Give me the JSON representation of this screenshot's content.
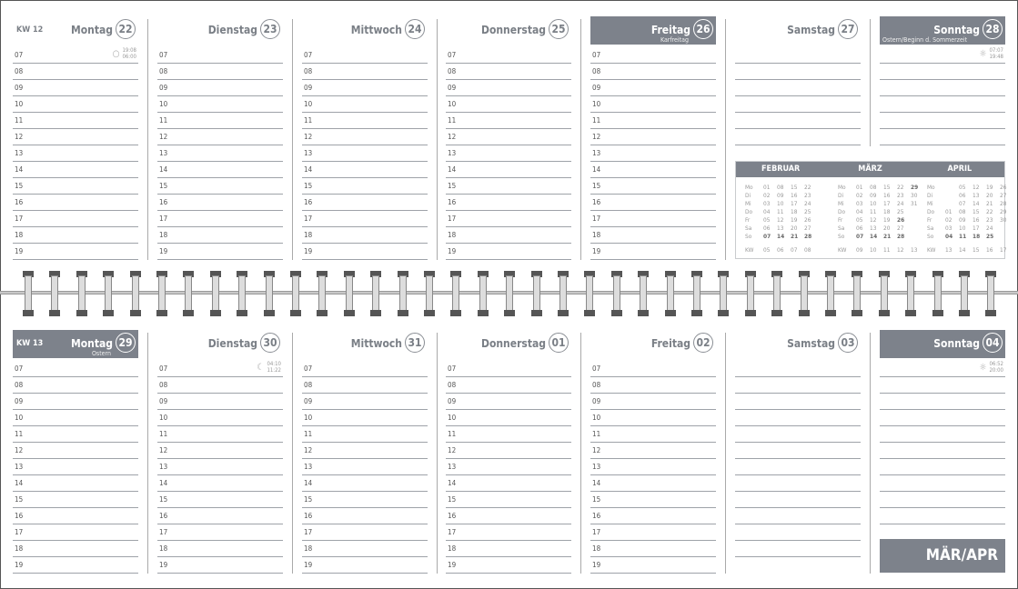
{
  "hours": [
    "07",
    "08",
    "09",
    "10",
    "11",
    "12",
    "13",
    "14",
    "15",
    "16",
    "17",
    "18",
    "19"
  ],
  "weeks": [
    {
      "kw": "KW 12",
      "days": [
        {
          "name": "Montag",
          "num": "22",
          "dark": false,
          "info": {
            "icon": "full-moon-icon",
            "glyph": "○",
            "t1": "19:08",
            "t2": "06:00"
          }
        },
        {
          "name": "Dienstag",
          "num": "23",
          "dark": false
        },
        {
          "name": "Mittwoch",
          "num": "24",
          "dark": false
        },
        {
          "name": "Donnerstag",
          "num": "25",
          "dark": false
        },
        {
          "name": "Freitag",
          "num": "26",
          "dark": true,
          "sub": "Karfreitag"
        },
        {
          "name": "Samstag",
          "num": "27",
          "dark": false
        },
        {
          "name": "Sonntag",
          "num": "28",
          "dark": true,
          "sub": "Ostern/Beginn d. Sommerzeit",
          "info": {
            "icon": "sun-icon",
            "glyph": "☼",
            "t1": "07:07",
            "t2": "19:48"
          }
        }
      ]
    },
    {
      "kw": "KW 13",
      "days": [
        {
          "name": "Montag",
          "num": "29",
          "dark": true,
          "sub": "Ostern"
        },
        {
          "name": "Dienstag",
          "num": "30",
          "dark": false,
          "info": {
            "icon": "moon-crescent-icon",
            "glyph": "☾",
            "t1": "04:10",
            "t2": "11:22"
          }
        },
        {
          "name": "Mittwoch",
          "num": "31",
          "dark": false
        },
        {
          "name": "Donnerstag",
          "num": "01",
          "dark": false
        },
        {
          "name": "Freitag",
          "num": "02",
          "dark": false
        },
        {
          "name": "Samstag",
          "num": "03",
          "dark": false
        },
        {
          "name": "Sonntag",
          "num": "04",
          "dark": true,
          "info": {
            "icon": "sun-icon",
            "glyph": "☼",
            "t1": "06:52",
            "t2": "20:00"
          }
        }
      ]
    }
  ],
  "mini_calendar": {
    "weekdays": [
      "Mo",
      "Di",
      "Mi",
      "Do",
      "Fr",
      "Sa",
      "So"
    ],
    "months": [
      {
        "name": "FEBRUAR",
        "cols": [
          [
            "01",
            "02",
            "03",
            "04",
            "05",
            "06",
            "07"
          ],
          [
            "08",
            "09",
            "10",
            "11",
            "12",
            "13",
            "14"
          ],
          [
            "15",
            "16",
            "17",
            "18",
            "19",
            "20",
            "21"
          ],
          [
            "22",
            "23",
            "24",
            "25",
            "26",
            "27",
            "28"
          ]
        ],
        "kw": [
          "05",
          "06",
          "07",
          "08"
        ]
      },
      {
        "name": "MÄRZ",
        "cols": [
          [
            "01",
            "02",
            "03",
            "04",
            "05",
            "06",
            "07"
          ],
          [
            "08",
            "09",
            "10",
            "11",
            "12",
            "13",
            "14"
          ],
          [
            "15",
            "16",
            "17",
            "18",
            "19",
            "20",
            "21"
          ],
          [
            "22",
            "23",
            "24",
            "25",
            "26",
            "27",
            "28"
          ],
          [
            "29",
            "30",
            "31",
            "",
            "",
            "",
            ""
          ]
        ],
        "kw": [
          "09",
          "10",
          "11",
          "12",
          "13"
        ]
      },
      {
        "name": "APRIL",
        "cols": [
          [
            "",
            "",
            "",
            "01",
            "02",
            "03",
            "04"
          ],
          [
            "05",
            "06",
            "07",
            "08",
            "09",
            "10",
            "11"
          ],
          [
            "12",
            "13",
            "14",
            "15",
            "16",
            "17",
            "18"
          ],
          [
            "19",
            "20",
            "21",
            "22",
            "23",
            "24",
            "25"
          ],
          [
            "26",
            "27",
            "28",
            "29",
            "30",
            "",
            ""
          ]
        ],
        "kw": [
          "13",
          "14",
          "15",
          "16",
          "17"
        ]
      }
    ],
    "kw_label": "KW",
    "bold": {
      "MÄRZ": [
        "29",
        "26"
      ],
      "APRIL": []
    }
  },
  "month_label": "MÄR/APR",
  "colors": {
    "header_dark": "#7d828b"
  }
}
